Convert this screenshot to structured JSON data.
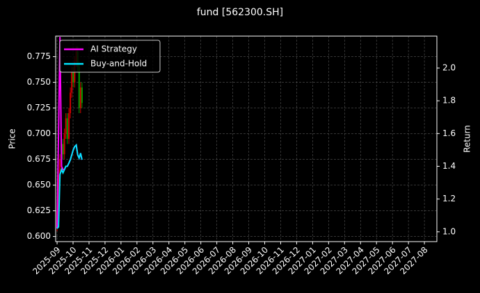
{
  "chart_data": {
    "type": "candlestick",
    "title": "fund [562300.SH]",
    "ylabel": "Price",
    "y2label": "Return",
    "x": [
      0,
      0.09,
      0.18,
      0.28,
      0.37,
      0.46,
      0.55,
      0.64,
      0.74,
      0.83,
      0.92,
      1.01,
      1.1,
      1.2,
      1.29,
      1.38,
      1.47,
      1.56
    ],
    "open": [
      0.61,
      0.625,
      0.66,
      0.675,
      0.69,
      0.68,
      0.7,
      0.715,
      0.695,
      0.72,
      0.74,
      0.76,
      0.75,
      0.77,
      0.78,
      0.765,
      0.725,
      0.745
    ],
    "high": [
      0.63,
      0.665,
      0.68,
      0.695,
      0.695,
      0.705,
      0.72,
      0.72,
      0.725,
      0.745,
      0.765,
      0.765,
      0.775,
      0.785,
      0.785,
      0.77,
      0.75,
      0.75
    ],
    "low": [
      0.605,
      0.62,
      0.655,
      0.67,
      0.675,
      0.675,
      0.695,
      0.69,
      0.69,
      0.715,
      0.735,
      0.745,
      0.745,
      0.765,
      0.76,
      0.72,
      0.72,
      0.725
    ],
    "close": [
      0.625,
      0.66,
      0.675,
      0.69,
      0.68,
      0.7,
      0.715,
      0.695,
      0.72,
      0.74,
      0.76,
      0.75,
      0.77,
      0.78,
      0.765,
      0.725,
      0.745,
      0.73
    ],
    "up_color": "#d00000",
    "down_color": "#00a000",
    "series": [
      {
        "name": "AI Strategy",
        "color": "#ff00ff",
        "axis": "y2",
        "values": [
          1.02,
          1.6,
          2.19,
          1.4,
          1.38,
          1.38,
          1.4,
          1.4,
          1.42,
          1.44,
          1.47,
          1.5,
          1.52,
          1.53,
          1.47,
          1.45,
          1.48,
          1.44
        ]
      },
      {
        "name": "Buy-and-Hold",
        "color": "#00e5ff",
        "axis": "y2",
        "values": [
          1.02,
          1.03,
          1.35,
          1.38,
          1.36,
          1.38,
          1.4,
          1.4,
          1.42,
          1.44,
          1.47,
          1.5,
          1.52,
          1.53,
          1.47,
          1.45,
          1.48,
          1.44
        ]
      }
    ],
    "xlim": [
      -0.09,
      23.78
    ],
    "xticks": [
      {
        "value": 0,
        "label": "2025-09"
      },
      {
        "value": 1,
        "label": "2025-10"
      },
      {
        "value": 2,
        "label": "2025-11"
      },
      {
        "value": 3,
        "label": "2025-12"
      },
      {
        "value": 4,
        "label": "2026-01"
      },
      {
        "value": 5,
        "label": "2026-02"
      },
      {
        "value": 6,
        "label": "2026-03"
      },
      {
        "value": 7,
        "label": "2026-04"
      },
      {
        "value": 8,
        "label": "2026-05"
      },
      {
        "value": 9,
        "label": "2026-06"
      },
      {
        "value": 10,
        "label": "2026-07"
      },
      {
        "value": 11,
        "label": "2026-08"
      },
      {
        "value": 12,
        "label": "2026-09"
      },
      {
        "value": 13,
        "label": "2026-10"
      },
      {
        "value": 14,
        "label": "2026-11"
      },
      {
        "value": 15,
        "label": "2026-12"
      },
      {
        "value": 16,
        "label": "2027-01"
      },
      {
        "value": 17,
        "label": "2027-02"
      },
      {
        "value": 18,
        "label": "2027-03"
      },
      {
        "value": 19,
        "label": "2027-04"
      },
      {
        "value": 20,
        "label": "2027-05"
      },
      {
        "value": 21,
        "label": "2027-06"
      },
      {
        "value": 22,
        "label": "2027-07"
      },
      {
        "value": 23,
        "label": "2027-08"
      }
    ],
    "ylim": [
      0.595,
      0.795
    ],
    "yticks": [
      {
        "value": 0.6,
        "label": "0.600"
      },
      {
        "value": 0.625,
        "label": "0.625"
      },
      {
        "value": 0.65,
        "label": "0.650"
      },
      {
        "value": 0.675,
        "label": "0.675"
      },
      {
        "value": 0.7,
        "label": "0.700"
      },
      {
        "value": 0.725,
        "label": "0.725"
      },
      {
        "value": 0.75,
        "label": "0.750"
      },
      {
        "value": 0.775,
        "label": "0.775"
      }
    ],
    "y2lim": [
      0.94,
      2.195
    ],
    "y2ticks": [
      {
        "value": 1.0,
        "label": "1.0"
      },
      {
        "value": 1.2,
        "label": "1.2"
      },
      {
        "value": 1.4,
        "label": "1.4"
      },
      {
        "value": 1.6,
        "label": "1.6"
      },
      {
        "value": 1.8,
        "label": "1.8"
      },
      {
        "value": 2.0,
        "label": "2.0"
      }
    ],
    "grid": true,
    "legend": "upper left"
  }
}
